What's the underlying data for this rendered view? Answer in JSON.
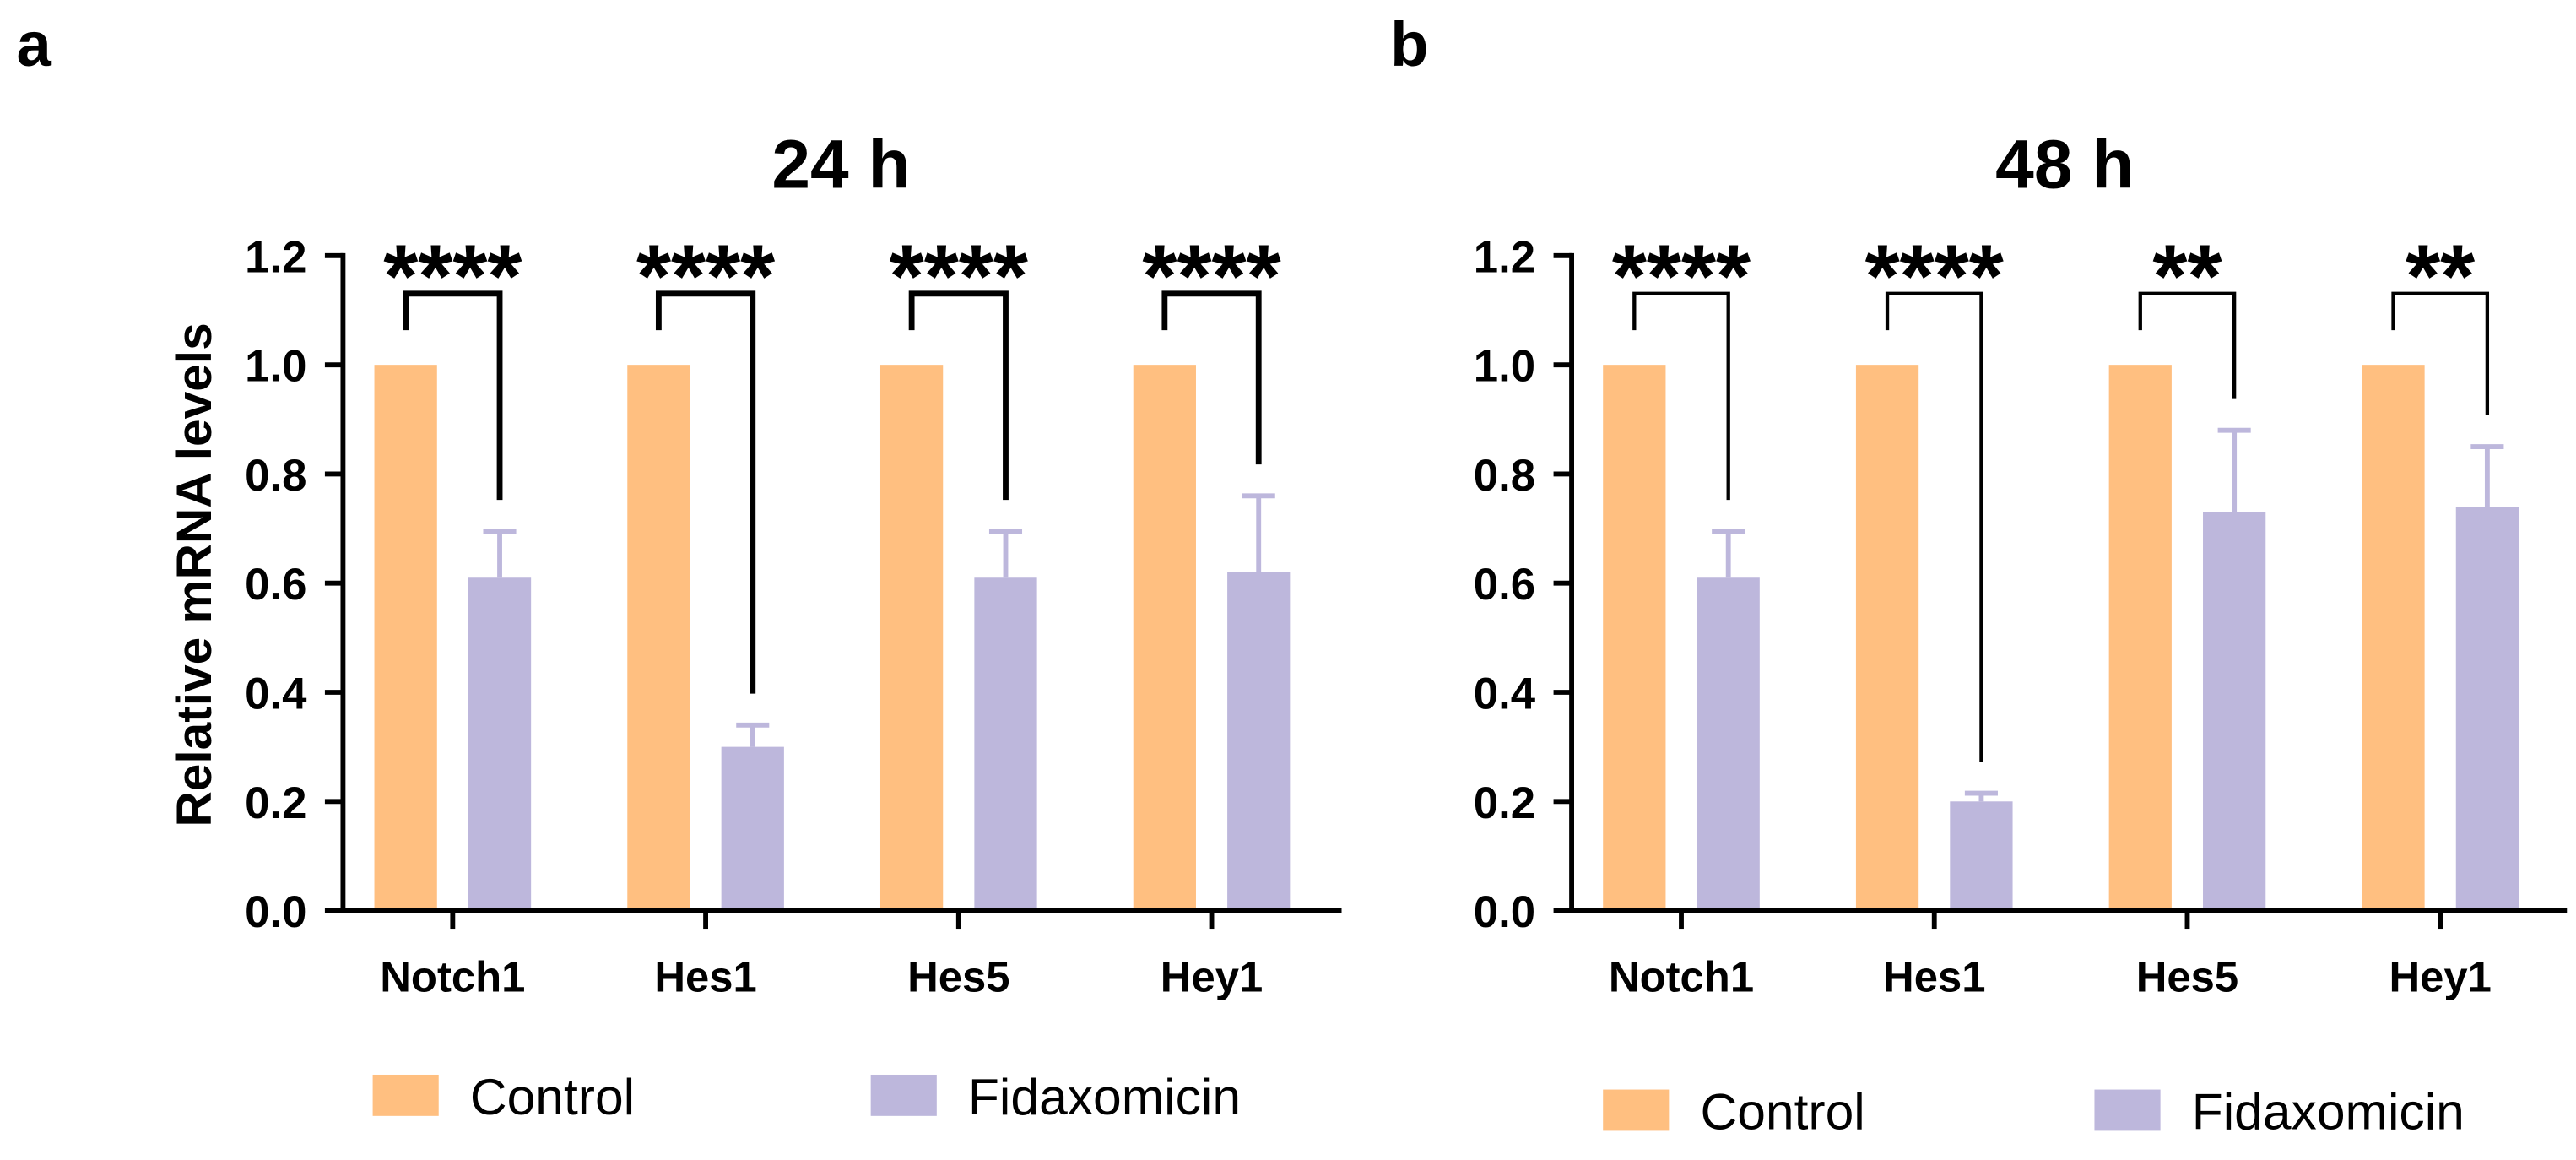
{
  "colors": {
    "control": "#FFBF80",
    "fidaxomicin": "#BDB7DC",
    "axis": "#000000"
  },
  "chart_data": [
    {
      "panel_label": "a",
      "type": "bar",
      "title": "24 h",
      "xlabel": "",
      "ylabel": "Relative mRNA levels",
      "ylim": [
        0,
        1.2
      ],
      "yticks": [
        0,
        0.2,
        0.4,
        0.6,
        0.8,
        1.0,
        1.2
      ],
      "ytick_labels": [
        "0.0",
        "0.2",
        "0.4",
        "0.6",
        "0.8",
        "1.0",
        "1.2"
      ],
      "categories": [
        "Notch1",
        "Hes1",
        "Hes5",
        "Hey1"
      ],
      "series": [
        {
          "name": "Control",
          "color": "#FFBF80",
          "values": [
            1.0,
            1.0,
            1.0,
            1.0
          ]
        },
        {
          "name": "Fidaxomicin",
          "color": "#BDB7DC",
          "values": [
            0.61,
            0.3,
            0.61,
            0.62
          ],
          "errors": [
            0.085,
            0.04,
            0.085,
            0.14
          ]
        }
      ],
      "significance": [
        "****",
        "****",
        "****",
        "****"
      ],
      "legend_position": "bottom",
      "grid": false
    },
    {
      "panel_label": "b",
      "type": "bar",
      "title": "48 h",
      "xlabel": "",
      "ylabel": "",
      "ylim": [
        0,
        1.2
      ],
      "yticks": [
        0,
        0.2,
        0.4,
        0.6,
        0.8,
        1.0,
        1.2
      ],
      "ytick_labels": [
        "0.0",
        "0.2",
        "0.4",
        "0.6",
        "0.8",
        "1.0",
        "1.2"
      ],
      "categories": [
        "Notch1",
        "Hes1",
        "Hes5",
        "Hey1"
      ],
      "series": [
        {
          "name": "Control",
          "color": "#FFBF80",
          "values": [
            1.0,
            1.0,
            1.0,
            1.0
          ]
        },
        {
          "name": "Fidaxomicin",
          "color": "#BDB7DC",
          "values": [
            0.61,
            0.2,
            0.73,
            0.74
          ],
          "errors": [
            0.085,
            0.015,
            0.15,
            0.11
          ]
        }
      ],
      "significance": [
        "****",
        "****",
        "**",
        "**"
      ],
      "legend_position": "bottom",
      "grid": false
    }
  ]
}
